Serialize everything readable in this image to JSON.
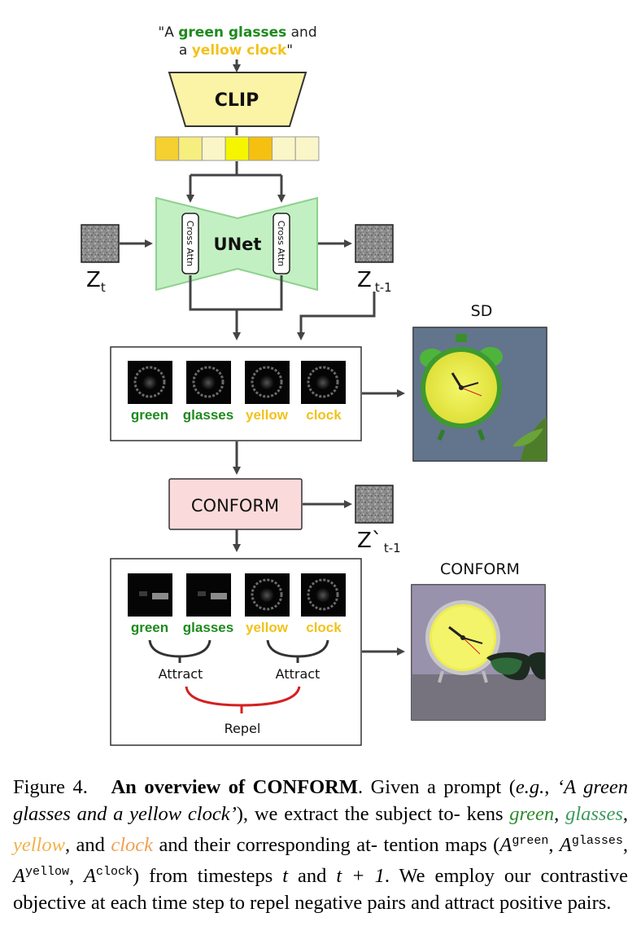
{
  "figure": {
    "prompt_line1_pre": "\"A ",
    "prompt_green_glasses": "green glasses",
    "prompt_line1_post": " and",
    "prompt_line2_pre": "a ",
    "prompt_yellow_clock": "yellow clock",
    "prompt_line2_post": "\"",
    "clip_label": "CLIP",
    "unet_label": "UNet",
    "cross_attn_label": "Cross Attn",
    "zt_label": "Z",
    "zt_sub": "t",
    "zt1_label": "Z",
    "zt1_sub": "t-1",
    "zprime_label": "Z`",
    "zprime_sub": "t-1",
    "conform_box_label": "CONFORM",
    "tokens": [
      "green",
      "glasses",
      "yellow",
      "clock"
    ],
    "attract_label": "Attract",
    "repel_label": "Repel",
    "sd_title": "SD",
    "conform_title": "CONFORM",
    "colors": {
      "green_token": "#1e8a1e",
      "yellow_token": "#f2c21c",
      "clip_fill": "#fbf3a5",
      "unet_fill": "#c2f0c2",
      "conform_fill": "#fadada",
      "repel_line": "#d42020",
      "token_cells": [
        "#f5d030",
        "#f7ee80",
        "#fbf6c8",
        "#f5f500",
        "#f5c010",
        "#fbf6c8",
        "#fbf6c8"
      ]
    }
  },
  "caption": {
    "fig_label": "Figure 4.",
    "title": "An overview of CONFORM",
    "t1": ". Given a prompt (",
    "eg": "e.g.",
    "t2": ", ",
    "prompt": "‘A green glasses and a yellow clock’",
    "t3": "), we extract the subject to- kens ",
    "w_green": "green",
    "sep1": ", ",
    "w_glasses": "glasses",
    "sep2": ", ",
    "w_yellow": "yellow",
    "sep3": ", and ",
    "w_clock": "clock",
    "t4": " and their corresponding at- tention maps (",
    "A": "A",
    "sup_green": "green",
    "sup_glasses": "glasses",
    "sup_yellow": "yellow",
    "sup_clock": "clock",
    "t5": ") from timesteps ",
    "t_var": "t",
    "t6": " and ",
    "t1_expr": "t + 1",
    "t7": ". We employ our contrastive objective at each time step to repel negative pairs and attract positive pairs."
  }
}
